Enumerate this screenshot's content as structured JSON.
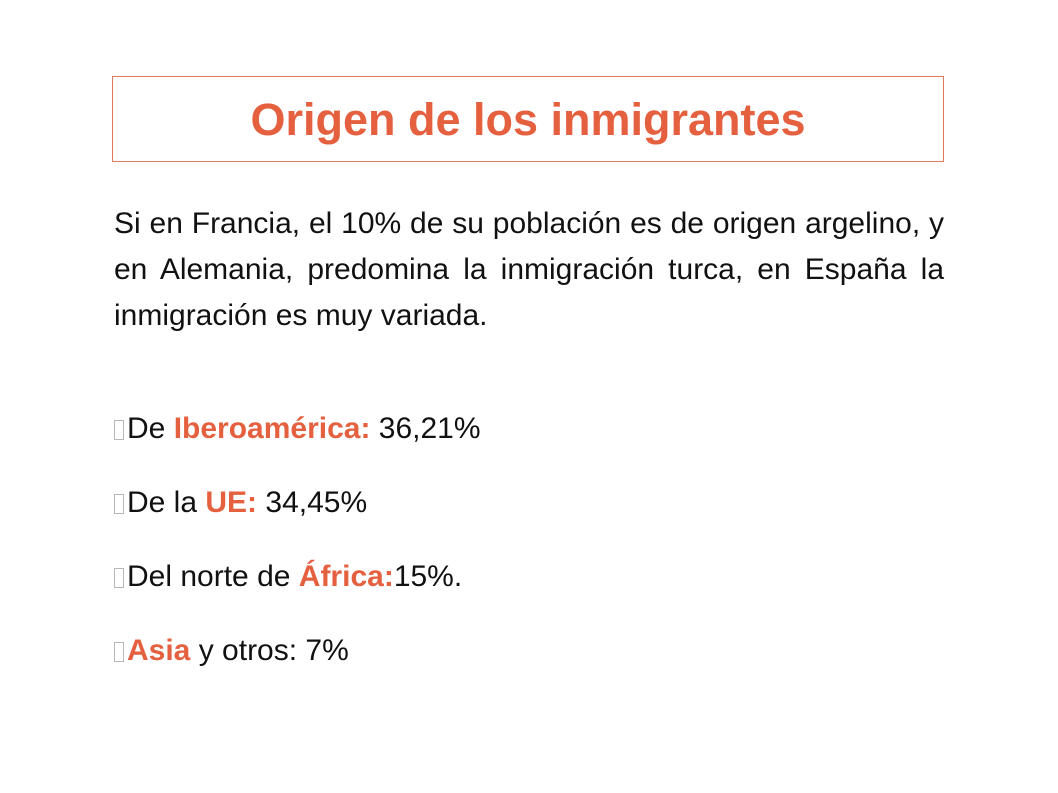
{
  "slide": {
    "title": "Origen de los inmigrantes",
    "paragraph": "Si en Francia, el 10% de su población es de origen argelino, y en  Alemania, predomina la inmigración turca, en España la inmigración es muy variada.",
    "bullets": [
      {
        "prefix": "De ",
        "highlight": "Iberoamérica:",
        "suffix": " 36,21%"
      },
      {
        "prefix": "De la ",
        "highlight": "UE:",
        "suffix": " 34,45%"
      },
      {
        "prefix": "Del norte de ",
        "highlight": "África:",
        "suffix": "15%."
      },
      {
        "prefix": "",
        "highlight": "Asia",
        "suffix": " y otros: 7%"
      }
    ]
  },
  "colors": {
    "accent": "#e4603f",
    "title_border": "#e07a5f",
    "text": "#111111"
  },
  "icons": {
    "bullet": "missing-glyph-box-icon"
  }
}
